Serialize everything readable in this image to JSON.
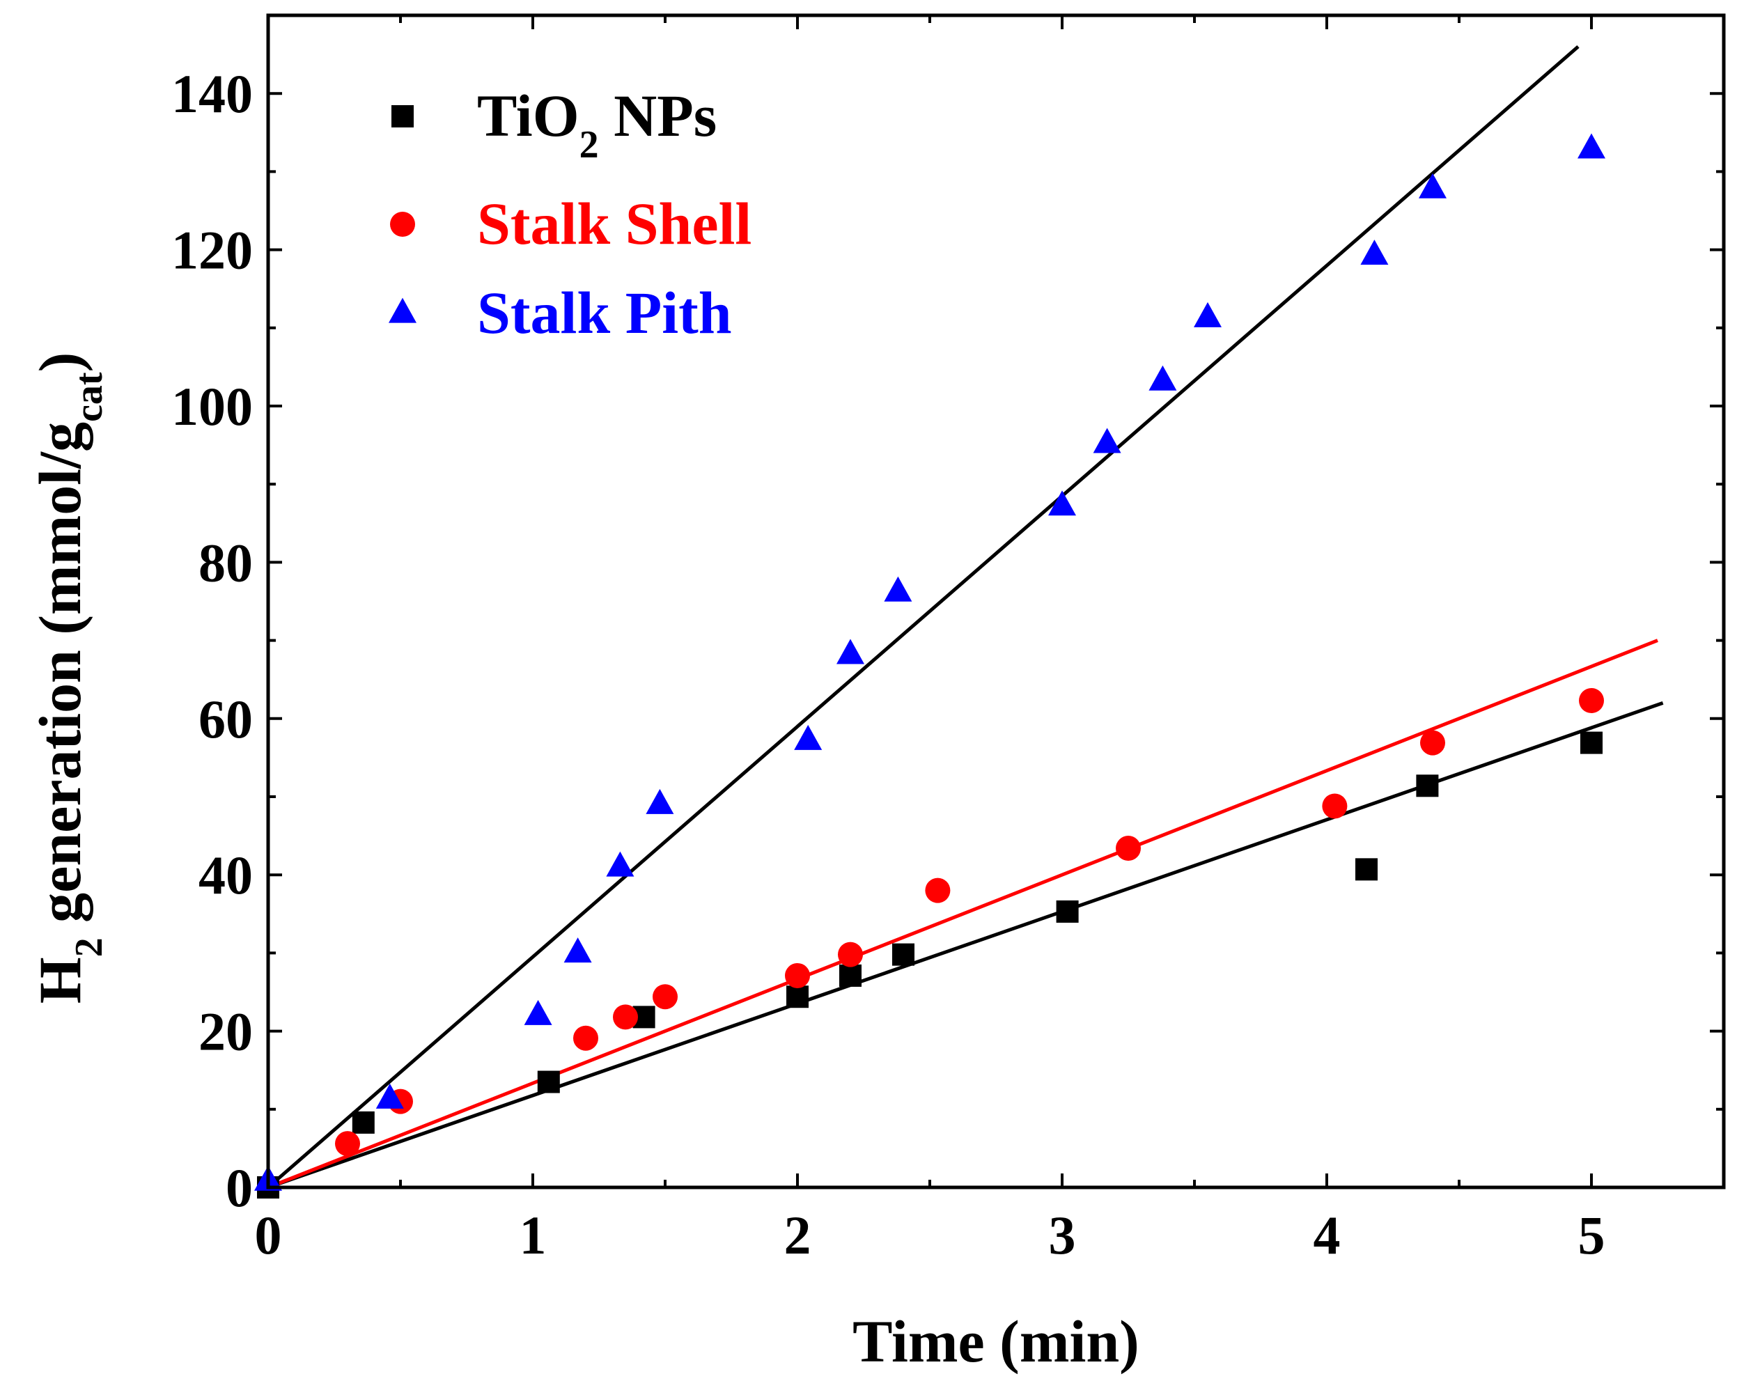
{
  "chart_data": {
    "type": "scatter",
    "title": "",
    "xlabel": "Time (min)",
    "ylabel": {
      "main": "H",
      "sub1": "2",
      "mid": " generation (mmol/g",
      "sub2": "cat",
      "end": ")"
    },
    "xlim": [
      0,
      5.5
    ],
    "ylim": [
      0,
      150
    ],
    "x_ticks": [
      0,
      1,
      2,
      3,
      4,
      5
    ],
    "x_tick_labels": [
      "0",
      "1",
      "2",
      "3",
      "4",
      "5"
    ],
    "y_ticks": [
      0,
      20,
      40,
      60,
      80,
      100,
      120,
      140
    ],
    "y_tick_labels": [
      "0",
      "20",
      "40",
      "60",
      "80",
      "100",
      "120",
      "140"
    ],
    "grid": false,
    "legend_position": "top-left",
    "series": [
      {
        "name": "TiO2 NPs",
        "label_main": "TiO",
        "label_sub": "2",
        "label_end": " NPs",
        "marker": "square",
        "color": "#000000",
        "text_color": "#000000",
        "points": [
          [
            0,
            0
          ],
          [
            0.36,
            8.3
          ],
          [
            1.06,
            13.5
          ],
          [
            1.42,
            21.8
          ],
          [
            2.0,
            24.4
          ],
          [
            2.2,
            27.1
          ],
          [
            2.4,
            29.8
          ],
          [
            3.02,
            35.3
          ],
          [
            4.15,
            40.7
          ],
          [
            4.38,
            51.4
          ],
          [
            5.0,
            56.9
          ]
        ],
        "fit": {
          "x": [
            0,
            5.27
          ],
          "y": [
            0,
            62
          ]
        },
        "fit_color": "#000000"
      },
      {
        "name": "Stalk Shell",
        "label_main": "Stalk Shell",
        "label_sub": "",
        "label_end": "",
        "marker": "circle",
        "color": "#ff0000",
        "text_color": "#ff0000",
        "points": [
          [
            0.3,
            5.6
          ],
          [
            0.5,
            11.0
          ],
          [
            1.2,
            19.1
          ],
          [
            1.35,
            21.8
          ],
          [
            1.5,
            24.4
          ],
          [
            2.0,
            27.1
          ],
          [
            2.2,
            29.8
          ],
          [
            2.53,
            38.0
          ],
          [
            3.25,
            43.4
          ],
          [
            4.03,
            48.8
          ],
          [
            4.4,
            56.9
          ],
          [
            5.0,
            62.3
          ]
        ],
        "fit": {
          "x": [
            0,
            5.25
          ],
          "y": [
            0,
            70
          ]
        },
        "fit_color": "#ff0000"
      },
      {
        "name": "Stalk Pith",
        "label_main": "Stalk Pith",
        "label_sub": "",
        "label_end": "",
        "marker": "triangle",
        "color": "#0000ff",
        "text_color": "#0000ff",
        "points": [
          [
            0,
            0.8
          ],
          [
            0.46,
            11.3
          ],
          [
            1.02,
            22.0
          ],
          [
            1.17,
            30.0
          ],
          [
            1.33,
            41.0
          ],
          [
            1.48,
            49.0
          ],
          [
            2.04,
            57.2
          ],
          [
            2.2,
            68.2
          ],
          [
            2.38,
            76.2
          ],
          [
            3.0,
            87.2
          ],
          [
            3.17,
            95.2
          ],
          [
            3.38,
            103.2
          ],
          [
            3.55,
            111.3
          ],
          [
            4.18,
            119.3
          ],
          [
            4.4,
            127.8
          ],
          [
            5.0,
            132.9
          ]
        ],
        "fit": {
          "x": [
            0,
            4.95
          ],
          "y": [
            0,
            146
          ]
        },
        "fit_color": "#000000"
      }
    ]
  }
}
